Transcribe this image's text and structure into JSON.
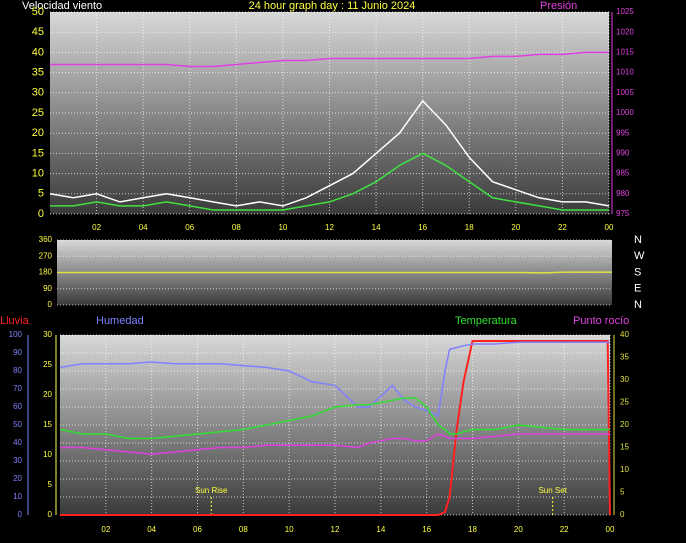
{
  "chart_data": [
    {
      "type": "line",
      "title": "24 hour graph day : 11 Junio 2024",
      "ylabel": "Velocidad viento",
      "y2label": "Presión",
      "x": [
        0,
        1,
        2,
        3,
        4,
        5,
        6,
        7,
        8,
        9,
        10,
        11,
        12,
        13,
        14,
        15,
        16,
        17,
        18,
        19,
        20,
        21,
        22,
        23,
        24
      ],
      "xlim": [
        0,
        24
      ],
      "xticks": [
        {
          "value": 2,
          "label": "02"
        },
        {
          "value": 4,
          "label": "04"
        },
        {
          "value": 6,
          "label": "06"
        },
        {
          "value": 8,
          "label": "08"
        },
        10,
        12,
        14,
        16,
        18,
        20,
        22,
        {
          "value": 24,
          "label": "00"
        }
      ],
      "ylim": [
        0,
        50
      ],
      "yticks": [
        0,
        5,
        10,
        15,
        20,
        25,
        30,
        35,
        40,
        45,
        50
      ],
      "y2lim": [
        975,
        1025
      ],
      "y2ticks": [
        975,
        980,
        985,
        990,
        995,
        1000,
        1005,
        1010,
        1015,
        1020,
        1025
      ],
      "grid": true,
      "series": [
        {
          "color": "#ffffff",
          "values": [
            5,
            4,
            5,
            3,
            4,
            5,
            4,
            3,
            2,
            3,
            2,
            4,
            7,
            10,
            15,
            20,
            28,
            22,
            14,
            8,
            6,
            4,
            3,
            3,
            2
          ]
        },
        {
          "color": "#40e040",
          "values": [
            2,
            2,
            3,
            2,
            2,
            3,
            2,
            1,
            1,
            1,
            1,
            2,
            3,
            5,
            8,
            12,
            15,
            12,
            8,
            4,
            3,
            2,
            1,
            1,
            1
          ]
        },
        {
          "color": "#e040e0",
          "axis": "y2",
          "values": [
            1012,
            1012,
            1012,
            1012,
            1012,
            1012,
            1011.5,
            1011.5,
            1012,
            1012.5,
            1013,
            1013,
            1013.5,
            1013.5,
            1013.5,
            1013.5,
            1013.5,
            1013.5,
            1013.5,
            1014,
            1014,
            1014.5,
            1014.5,
            1015,
            1015
          ]
        }
      ]
    },
    {
      "type": "line",
      "x": [
        0,
        2,
        4,
        6,
        8,
        10,
        12,
        14,
        16,
        18,
        20,
        21,
        22,
        24
      ],
      "xlim": [
        0,
        24
      ],
      "ylim": [
        0,
        360
      ],
      "yticks": [
        0,
        90,
        180,
        270,
        360
      ],
      "y2lim": [
        0,
        360
      ],
      "y2ticks": [
        {
          "value": 360,
          "label": "N"
        },
        {
          "value": 270,
          "label": "W"
        },
        {
          "value": 180,
          "label": "S"
        },
        {
          "value": 90,
          "label": "E"
        },
        {
          "value": 0,
          "label": "N"
        }
      ],
      "grid": true,
      "series": [
        {
          "color": "#e0e040",
          "values": [
            180,
            180,
            180,
            180,
            180,
            180,
            180,
            180,
            180,
            180,
            180,
            178,
            182,
            182
          ]
        }
      ]
    },
    {
      "type": "line",
      "x": [
        0,
        1,
        2,
        3,
        4,
        5,
        6,
        7,
        8,
        9,
        10,
        11,
        12,
        13,
        13.5,
        14,
        14.5,
        15,
        15.5,
        16,
        16.5,
        16.8,
        17,
        17.3,
        17.6,
        18,
        19,
        20,
        21,
        22,
        23,
        23.9,
        24
      ],
      "xlim": [
        0,
        24
      ],
      "xticks": [
        {
          "value": 2,
          "label": "02"
        },
        {
          "value": 4,
          "label": "04"
        },
        {
          "value": 6,
          "label": "06"
        },
        {
          "value": 8,
          "label": "08"
        },
        10,
        12,
        14,
        16,
        18,
        20,
        22,
        {
          "value": 24,
          "label": "00"
        }
      ],
      "ylim": [
        0,
        100
      ],
      "yticks": [
        0,
        10,
        20,
        30,
        40,
        50,
        60,
        70,
        80,
        90,
        100
      ],
      "y2lim": [
        0,
        40
      ],
      "y2ticks": [
        0,
        5,
        10,
        15,
        20,
        25,
        30,
        35,
        40
      ],
      "y3lim": [
        0,
        30
      ],
      "y3ticks": [
        0,
        5,
        10,
        15,
        20,
        25,
        30
      ],
      "grid": true,
      "annotations": [
        {
          "text": "Sun Rise",
          "x": 6.6
        },
        {
          "text": "Sun Set",
          "x": 21.5
        }
      ],
      "series": [
        {
          "name": "Lluvia",
          "color": "#ff2020",
          "axis": "y3",
          "values": [
            0,
            0,
            0,
            0,
            0,
            0,
            0,
            0,
            0,
            0,
            0,
            0,
            0,
            0,
            0,
            0,
            0,
            0,
            0,
            0,
            0,
            0.5,
            3,
            14,
            22,
            29,
            29,
            29,
            29,
            29,
            29,
            29,
            0
          ]
        },
        {
          "name": "Humedad",
          "color": "#8080ff",
          "values": [
            82,
            84,
            84,
            84,
            85,
            84,
            84,
            84,
            83,
            82,
            80,
            74,
            72,
            60,
            60,
            66,
            72,
            64,
            60,
            58,
            55,
            80,
            92,
            93,
            94,
            95,
            95,
            96,
            96,
            96,
            96,
            96,
            96
          ]
        },
        {
          "name": "Temperatura",
          "color": "#30e030",
          "axis": "y2",
          "values": [
            19,
            18,
            18,
            17,
            17,
            17.5,
            18,
            18.5,
            19,
            20,
            21,
            22,
            24,
            24.5,
            24.5,
            25,
            25.5,
            26,
            26,
            24,
            20,
            19,
            18,
            18,
            18.5,
            19,
            19,
            20,
            19.5,
            19,
            19,
            19,
            19
          ]
        },
        {
          "name": "Punto rocío",
          "color": "#e040e0",
          "axis": "y2",
          "values": [
            15,
            15,
            14.5,
            14,
            13.5,
            14,
            14.5,
            15,
            15,
            15.5,
            15.5,
            15.5,
            15.5,
            15,
            16,
            16.5,
            17,
            17,
            16.5,
            16.5,
            18,
            17.5,
            17,
            17,
            17,
            17,
            17.5,
            18,
            18,
            18,
            18,
            18,
            18
          ]
        }
      ]
    }
  ]
}
